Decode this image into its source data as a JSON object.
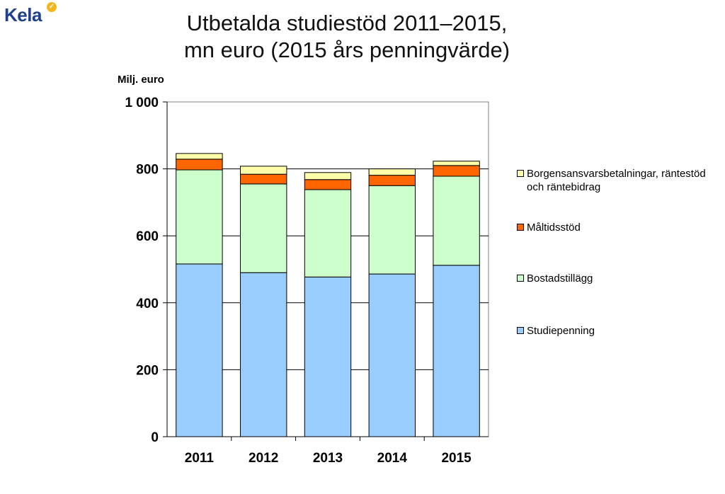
{
  "logo": {
    "text": "Kela",
    "badge": "✓"
  },
  "title_line1": "Utbetalda studiestöd 2011–2015,",
  "title_line2": "mn euro (2015 års penningvärde)",
  "chart_data": {
    "type": "bar",
    "stacked": true,
    "title": "Utbetalda studiestöd 2011–2015, mn euro (2015 års penningvärde)",
    "ylabel": "Milj. euro",
    "xlabel": "",
    "ylim": [
      0,
      1000
    ],
    "yticks": [
      0,
      200,
      400,
      600,
      800,
      1000
    ],
    "ytick_labels": [
      "0",
      "200",
      "400",
      "600",
      "800",
      "1 000"
    ],
    "categories": [
      "2011",
      "2012",
      "2013",
      "2014",
      "2015"
    ],
    "grid": true,
    "legend_placement": "right",
    "series": [
      {
        "name": "Studiepenning",
        "color": "#99ccff",
        "values": [
          516,
          490,
          477,
          486,
          512
        ]
      },
      {
        "name": "Bostadstillägg",
        "color": "#ccffcc",
        "values": [
          281,
          265,
          261,
          264,
          266
        ]
      },
      {
        "name": "Måltidsstöd",
        "color": "#ff6600",
        "values": [
          32,
          29,
          30,
          31,
          32
        ]
      },
      {
        "name": "Borgensansvarsbetalningar, räntestöd och räntebidrag",
        "color": "#ffffaa",
        "values": [
          17,
          24,
          21,
          19,
          13
        ]
      }
    ]
  }
}
